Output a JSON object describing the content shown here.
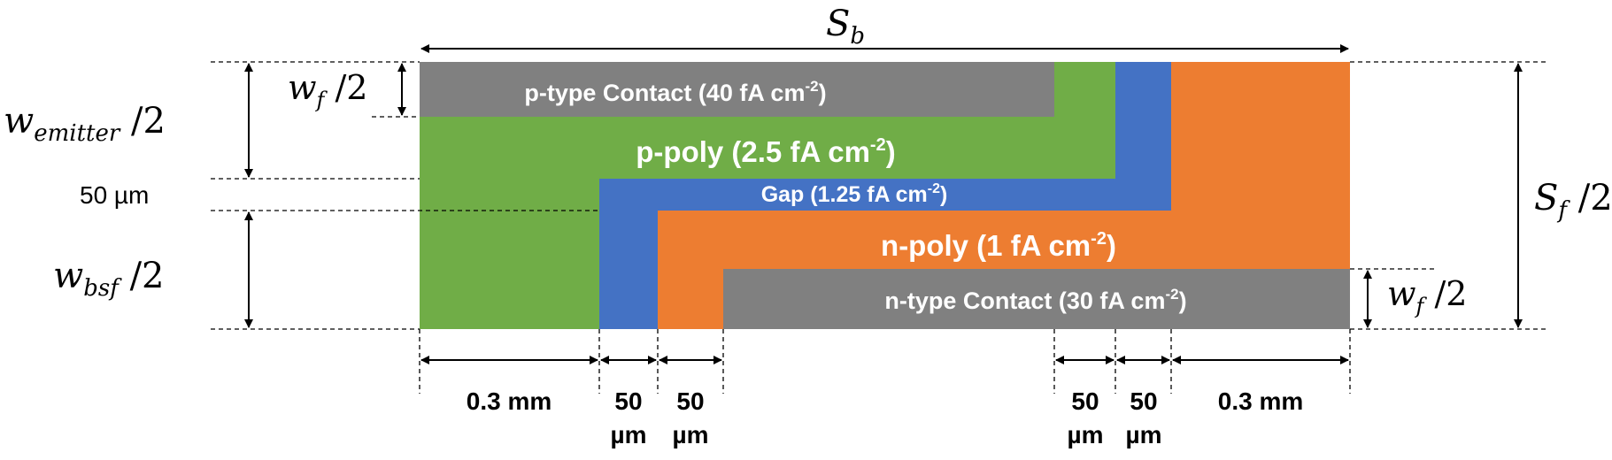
{
  "colors": {
    "contact": "#808080",
    "p_poly": "#70ad47",
    "gap": "#4472c4",
    "n_poly": "#ed7d31",
    "text_on_region": "#ffffff",
    "line": "#000000"
  },
  "regions": {
    "p_contact": "p-type Contact (40 fA cm",
    "p_poly": "p-poly (2.5 fA cm",
    "gap": "Gap (1.25 fA cm",
    "n_poly": "n-poly (1 fA cm",
    "n_contact": "n-type Contact (30 fA cm",
    "exp": "-2",
    "close": ")"
  },
  "symbols": {
    "sb_main": "S",
    "sb_sub": "b",
    "sf_main": "S",
    "sf_sub": "f",
    "wf_main": "w",
    "wf_sub": "f",
    "we_main": "w",
    "we_sub": "emitter",
    "wb_main": "w",
    "wb_sub": "bsf",
    "half": " /2"
  },
  "dimensions": {
    "gap_width": "50 µm",
    "bottom_left_0": "0.3 mm",
    "bottom_left_1": [
      "50",
      "µm"
    ],
    "bottom_left_2": [
      "50",
      "µm"
    ],
    "bottom_right_0": [
      "50",
      "µm"
    ],
    "bottom_right_1": [
      "50",
      "µm"
    ],
    "bottom_right_2": "0.3 mm"
  }
}
